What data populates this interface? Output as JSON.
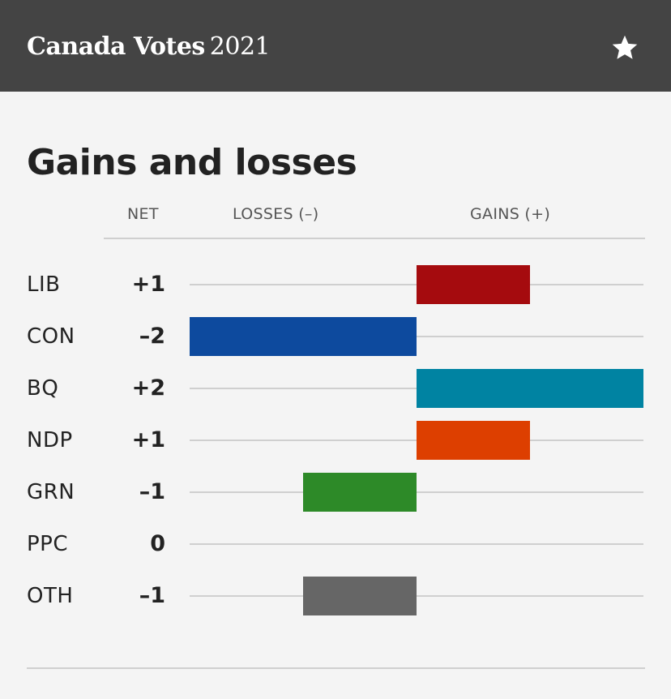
{
  "header": {
    "brand_bold": "Canada Votes",
    "brand_year": "2021",
    "favorite_icon": "star-icon",
    "background": "#444444"
  },
  "chart_data": {
    "type": "bar",
    "orientation": "horizontal-diverging",
    "title": "Gains and losses",
    "column_headers": {
      "net": "NET",
      "losses": "LOSSES (–)",
      "gains": "GAINS (+)"
    },
    "categories": [
      "LIB",
      "CON",
      "BQ",
      "NDP",
      "GRN",
      "PPC",
      "OTH"
    ],
    "net_labels": [
      "+1",
      "–2",
      "+2",
      "+1",
      "–1",
      "0",
      "–1"
    ],
    "values": [
      1,
      -2,
      2,
      1,
      -1,
      0,
      -1
    ],
    "colors": [
      "#a50b0e",
      "#0d4a9e",
      "#0083a2",
      "#dd3f00",
      "#2d8a28",
      "#888888",
      "#666666"
    ],
    "xlim": [
      -2,
      2
    ],
    "grid": true
  }
}
